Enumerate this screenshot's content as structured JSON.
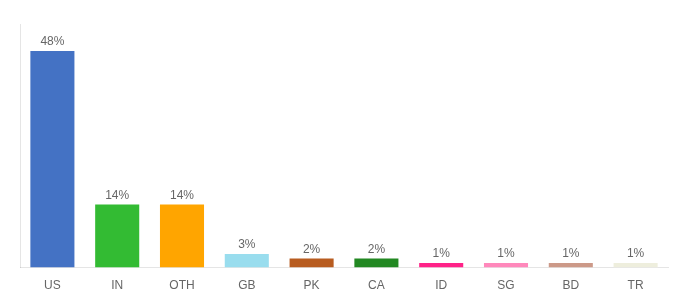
{
  "chart_data": {
    "type": "bar",
    "categories": [
      "US",
      "IN",
      "OTH",
      "GB",
      "PK",
      "CA",
      "ID",
      "SG",
      "BD",
      "TR"
    ],
    "values": [
      48,
      14,
      14,
      3,
      2,
      2,
      1,
      1,
      1,
      1
    ],
    "value_labels": [
      "48%",
      "14%",
      "14%",
      "3%",
      "2%",
      "2%",
      "1%",
      "1%",
      "1%",
      "1%"
    ],
    "colors": [
      "#4472C4",
      "#33BB33",
      "#FFA500",
      "#99DDEE",
      "#B85C20",
      "#228822",
      "#FF2288",
      "#FF88BB",
      "#CC9988",
      "#EEEEDD"
    ],
    "ylim": [
      0,
      54
    ],
    "data_labels": true,
    "tick_labels": "x",
    "grid": false
  }
}
